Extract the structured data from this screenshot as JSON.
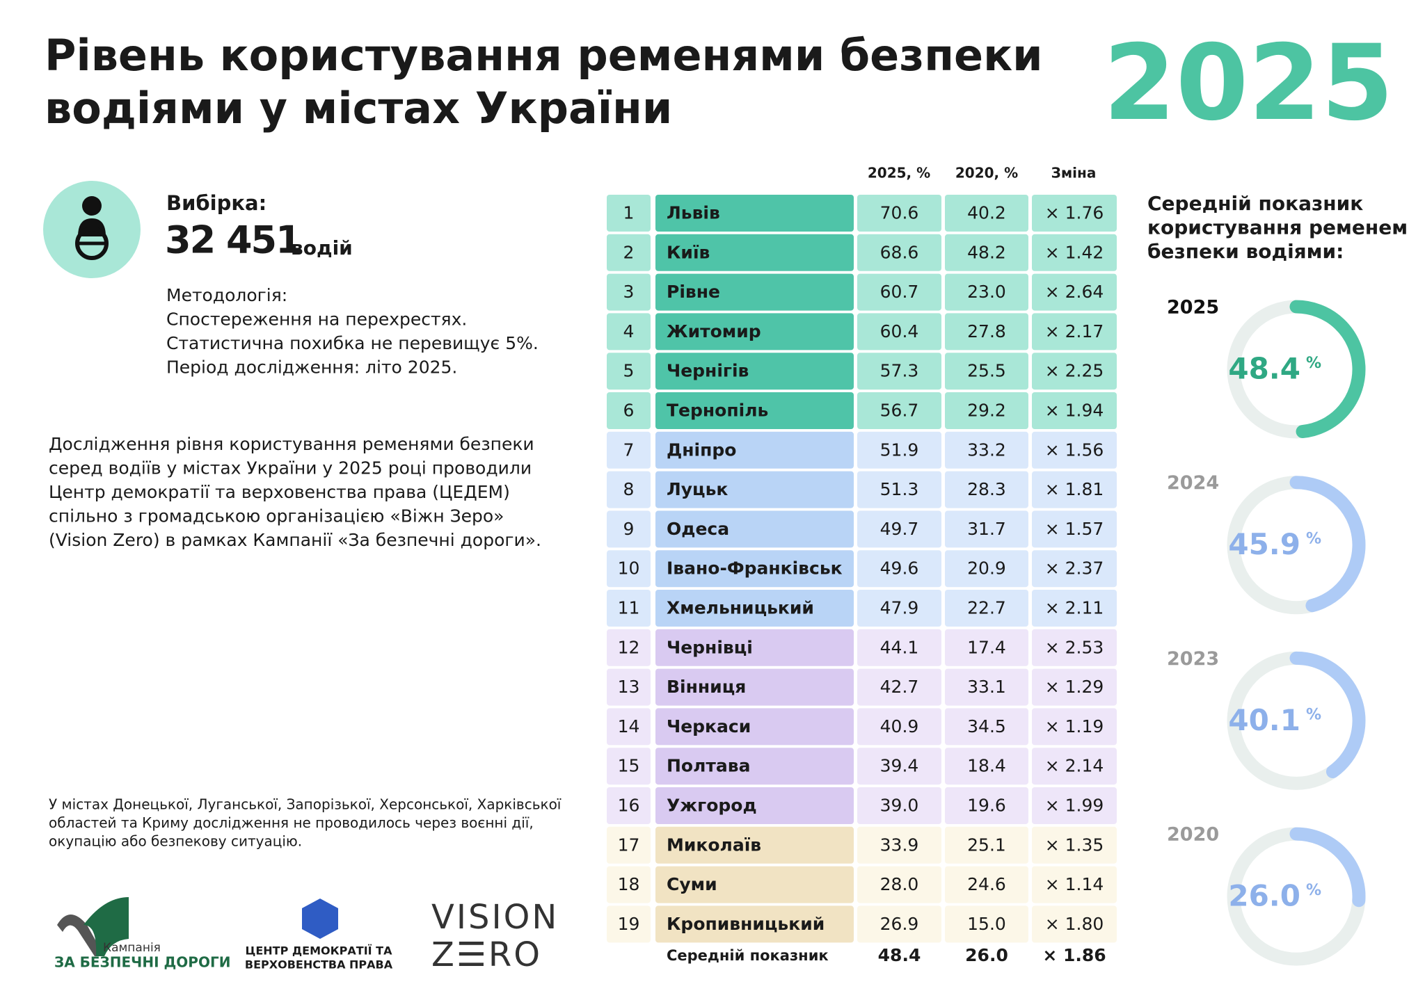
{
  "title": {
    "lines": [
      "Рівень користування ременями безпеки",
      "водіями у містах України"
    ],
    "year": "2025"
  },
  "sample": {
    "label": "Вибірка:",
    "count": "32 451",
    "unit": "водій"
  },
  "methodology": [
    "Методологія:",
    "Спостереження на перехрестях.",
    "Статистична похибка не перевищує 5%.",
    "Період дослідження: літо 2025."
  ],
  "description": [
    "Дослідження рівня користування ременями безпеки",
    "серед водіїв у містах України у 2025 році проводили",
    "Центр демократії та верховенства права (ЦЕДЕМ)",
    "спільно з громадською організацією «Віжн Зеро»",
    "(Vision Zero) в рамках Кампанії «За безпечні дороги»."
  ],
  "footnote": [
    "У містах Донецької, Луганської, Запорізької, Херсонської, Харківської",
    "областей та Криму дослідження не проводилось через воєнні дії,",
    "окупацію або безпекову ситуацію."
  ],
  "logos": {
    "campaign": [
      "Кампанія",
      "ЗА БЕЗПЕЧНІ ДОРОГИ"
    ],
    "cedem": [
      "ЦЕНТР ДЕМОКРАТІЇ ТА",
      "ВЕРХОВЕНСТВА ПРАВА"
    ],
    "visionzero": [
      "VISION",
      "Z☰RO"
    ]
  },
  "table": {
    "headers": [
      "2025, %",
      "2020, %",
      "Зміна"
    ],
    "groups": [
      {
        "color": "#4fc4a8",
        "tint": "#a9e7d7",
        "rows": [
          [
            "1",
            "Львів",
            "70.6",
            "40.2",
            "× 1.76"
          ],
          [
            "2",
            "Київ",
            "68.6",
            "48.2",
            "× 1.42"
          ],
          [
            "3",
            "Рівне",
            "60.7",
            "23.0",
            "× 2.64"
          ],
          [
            "4",
            "Житомир",
            "60.4",
            "27.8",
            "× 2.17"
          ],
          [
            "5",
            "Чернігів",
            "57.3",
            "25.5",
            "× 2.25"
          ],
          [
            "6",
            "Тернопіль",
            "56.7",
            "29.2",
            "× 1.94"
          ]
        ]
      },
      {
        "color": "#b9d4f6",
        "tint": "#dae8fb",
        "rows": [
          [
            "7",
            "Дніпро",
            "51.9",
            "33.2",
            "× 1.56"
          ],
          [
            "8",
            "Луцьк",
            "51.3",
            "28.3",
            "× 1.81"
          ],
          [
            "9",
            "Одеса",
            "49.7",
            "31.7",
            "× 1.57"
          ],
          [
            "10",
            "Івано-Франківськ",
            "49.6",
            "20.9",
            "× 2.37"
          ],
          [
            "11",
            "Хмельницький",
            "47.9",
            "22.7",
            "× 2.11"
          ]
        ]
      },
      {
        "color": "#d9caf1",
        "tint": "#eee6f9",
        "rows": [
          [
            "12",
            "Чернівці",
            "44.1",
            "17.4",
            "× 2.53"
          ],
          [
            "13",
            "Вінниця",
            "42.7",
            "33.1",
            "× 1.29"
          ],
          [
            "14",
            "Черкаси",
            "40.9",
            "34.5",
            "× 1.19"
          ],
          [
            "15",
            "Полтава",
            "39.4",
            "18.4",
            "× 2.14"
          ],
          [
            "16",
            "Ужгород",
            "39.0",
            "19.6",
            "× 1.99"
          ]
        ]
      },
      {
        "color": "#f1e3c3",
        "tint": "#fcf7e8",
        "rows": [
          [
            "17",
            "Миколаїв",
            "33.9",
            "25.1",
            "× 1.35"
          ],
          [
            "18",
            "Суми",
            "28.0",
            "24.6",
            "× 1.14"
          ],
          [
            "19",
            "Кропивницький",
            "26.9",
            "15.0",
            "× 1.80"
          ]
        ]
      }
    ],
    "average": [
      "Середній показник",
      "48.4",
      "26.0",
      "× 1.86"
    ]
  },
  "gauges": {
    "title": [
      "Середній показник",
      "користування ременем",
      "безпеки водіями:"
    ],
    "items": [
      {
        "year": "2025",
        "value": 48.4,
        "label": "48.4",
        "unit": "%",
        "color": "#4dc4a2",
        "text_color": "#2fa883",
        "year_color": "#111111"
      },
      {
        "year": "2024",
        "value": 45.9,
        "label": "45.9",
        "unit": "%",
        "color": "#aecbf6",
        "text_color": "#8db0ea",
        "year_color": "#9a9a9a"
      },
      {
        "year": "2023",
        "value": 40.1,
        "label": "40.1",
        "unit": "%",
        "color": "#aecbf6",
        "text_color": "#8db0ea",
        "year_color": "#9a9a9a"
      },
      {
        "year": "2020",
        "value": 26,
        "label": "26.0",
        "unit": "%",
        "color": "#aecbf6",
        "text_color": "#8db0ea",
        "year_color": "#9a9a9a"
      }
    ]
  }
}
